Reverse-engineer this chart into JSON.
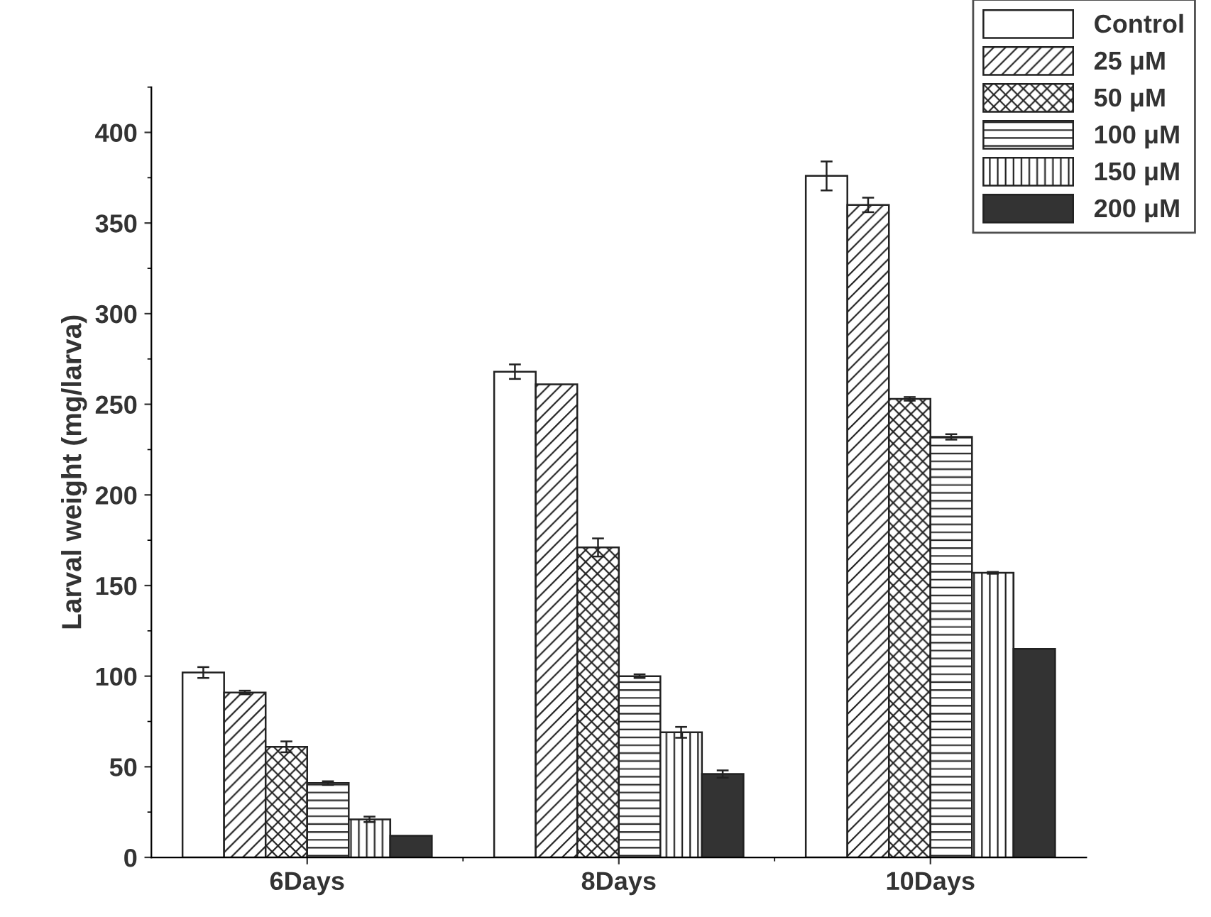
{
  "chart_data": {
    "type": "bar",
    "ylabel": "Larval weight (mg/larva)",
    "categories": [
      "6Days",
      "8Days",
      "10Days"
    ],
    "series": [
      {
        "name": "Control",
        "color": "#ffffff",
        "values": [
          102,
          268,
          376
        ],
        "errors": [
          3,
          4,
          8
        ]
      },
      {
        "name": "25 μM",
        "color": "#222222",
        "values": [
          91,
          261,
          360
        ],
        "errors": [
          1,
          null,
          4
        ]
      },
      {
        "name": "50 μM",
        "color": "#222222",
        "values": [
          61,
          171,
          253
        ],
        "errors": [
          3,
          5,
          1
        ]
      },
      {
        "name": "100 μM",
        "color": "#222222",
        "values": [
          41,
          100,
          232
        ],
        "errors": [
          1,
          1,
          1.5
        ]
      },
      {
        "name": "150 μM",
        "color": "#222222",
        "values": [
          21,
          69,
          157
        ],
        "errors": [
          1.5,
          3,
          0.5
        ]
      },
      {
        "name": "200 μM",
        "color": "#333333",
        "values": [
          12,
          46,
          115
        ],
        "errors": [
          null,
          2,
          null
        ]
      }
    ],
    "ylim": [
      0,
      425
    ],
    "yticks": [
      0,
      50,
      100,
      150,
      200,
      250,
      300,
      350,
      400
    ],
    "grid": false,
    "legend": "top right"
  }
}
